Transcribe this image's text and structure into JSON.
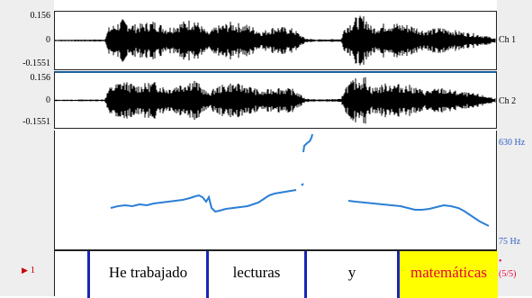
{
  "waveform": {
    "ch1": {
      "max_label": "0.156",
      "zero_label": "0",
      "min_label": "-0.1551",
      "channel_label": "Ch 1"
    },
    "ch2": {
      "max_label": "0.156",
      "zero_label": "0",
      "min_label": "-0.1551",
      "channel_label": "Ch 2"
    }
  },
  "pitch": {
    "top_label": "630 Hz",
    "bottom_label": "75 Hz"
  },
  "tier": {
    "number": "1",
    "segments": [
      {
        "text": "He trabajado",
        "selected": false
      },
      {
        "text": "lecturas",
        "selected": false
      },
      {
        "text": "y",
        "selected": false
      },
      {
        "text": "matemáticas",
        "selected": true
      }
    ],
    "selection_count": "(5/5)",
    "selection_marker": "•"
  },
  "colors": {
    "pitch_line": "#2b7fd6",
    "boundary": "#1a25b8",
    "selection_bg": "#ffff00",
    "selection_text": "#e8003a",
    "hz_label": "#2e5fc2"
  }
}
